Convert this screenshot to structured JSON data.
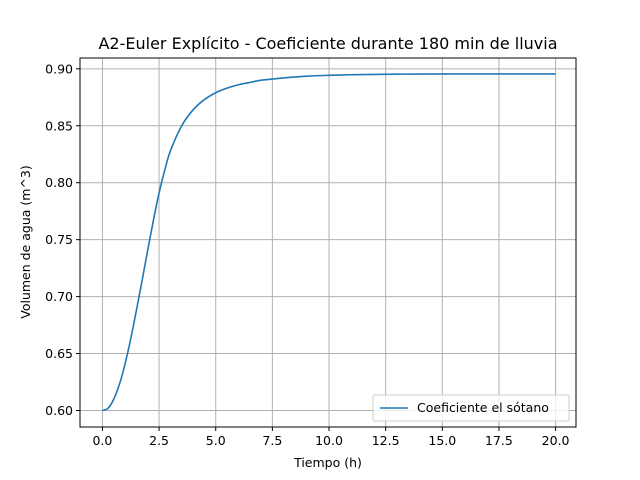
{
  "chart_data": {
    "type": "line",
    "title": "A2-Euler Explícito - Coeficiente durante 180 min de lluvia",
    "xlabel": "Tiempo (h)",
    "ylabel": "Volumen de agua (m^3)",
    "xlim": [
      -0.99,
      20.9
    ],
    "ylim": [
      0.5855,
      0.9095
    ],
    "xticks": [
      0.0,
      2.5,
      5.0,
      7.5,
      10.0,
      12.5,
      15.0,
      17.5,
      20.0
    ],
    "yticks": [
      0.6,
      0.65,
      0.7,
      0.75,
      0.8,
      0.85,
      0.9
    ],
    "xtick_labels": [
      "0.0",
      "2.5",
      "5.0",
      "7.5",
      "10.0",
      "12.5",
      "15.0",
      "17.5",
      "20.0"
    ],
    "ytick_labels": [
      "0.60",
      "0.65",
      "0.70",
      "0.75",
      "0.80",
      "0.85",
      "0.90"
    ],
    "grid": true,
    "legend_position": "lower-right",
    "series": [
      {
        "name": "Coeficiente el sótano",
        "color": "#1f77b4",
        "x": [
          0.0,
          0.25,
          0.5,
          0.75,
          1.0,
          1.25,
          1.5,
          1.75,
          2.0,
          2.25,
          2.5,
          2.75,
          3.0,
          3.5,
          4.0,
          4.5,
          5.0,
          5.5,
          6.0,
          6.5,
          7.0,
          7.5,
          8.0,
          9.0,
          10.0,
          11.0,
          12.0,
          13.0,
          14.0,
          16.0,
          18.0,
          20.0
        ],
        "y": [
          0.6,
          0.602,
          0.61,
          0.623,
          0.641,
          0.663,
          0.688,
          0.714,
          0.741,
          0.767,
          0.791,
          0.811,
          0.828,
          0.85,
          0.864,
          0.873,
          0.879,
          0.883,
          0.886,
          0.888,
          0.89,
          0.891,
          0.892,
          0.8935,
          0.8943,
          0.8948,
          0.8951,
          0.8953,
          0.8954,
          0.8955,
          0.8955,
          0.8955
        ]
      }
    ]
  }
}
